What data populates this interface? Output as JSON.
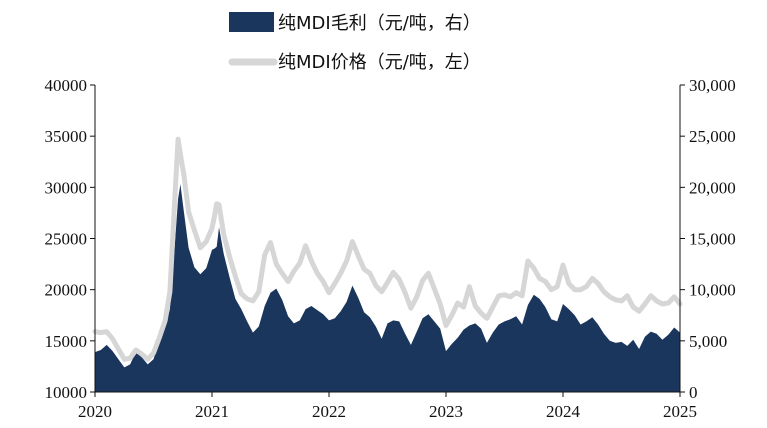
{
  "chart_data": {
    "type": "area+line",
    "x_ticks": [
      "2020",
      "2021",
      "2022",
      "2023",
      "2024",
      "2025"
    ],
    "y_left": {
      "ticks": [
        "10000",
        "15000",
        "20000",
        "25000",
        "30000",
        "35000",
        "40000"
      ],
      "range": [
        10000,
        40000
      ]
    },
    "y_right": {
      "ticks": [
        "0",
        "5,000",
        "10,000",
        "15,000",
        "20,000",
        "25,000",
        "30,000"
      ],
      "range": [
        0,
        30000
      ]
    },
    "grid": false,
    "legend_position": "top-center",
    "series": [
      {
        "name": "纯MDI毛利（元/吨，右）",
        "kind": "area",
        "axis": "right",
        "color": "#1b365d",
        "points": [
          [
            2020.0,
            3900
          ],
          [
            2020.05,
            4100
          ],
          [
            2020.1,
            4600
          ],
          [
            2020.15,
            4000
          ],
          [
            2020.2,
            3200
          ],
          [
            2020.25,
            2400
          ],
          [
            2020.3,
            2700
          ],
          [
            2020.35,
            3900
          ],
          [
            2020.4,
            3400
          ],
          [
            2020.45,
            2700
          ],
          [
            2020.5,
            3200
          ],
          [
            2020.55,
            5000
          ],
          [
            2020.6,
            6300
          ],
          [
            2020.64,
            8100
          ],
          [
            2020.68,
            14100
          ],
          [
            2020.71,
            18900
          ],
          [
            2020.73,
            20300
          ],
          [
            2020.76,
            17600
          ],
          [
            2020.8,
            14100
          ],
          [
            2020.85,
            12200
          ],
          [
            2020.9,
            11500
          ],
          [
            2020.95,
            12100
          ],
          [
            2021.0,
            13900
          ],
          [
            2021.02,
            14000
          ],
          [
            2021.04,
            14200
          ],
          [
            2021.06,
            16100
          ],
          [
            2021.1,
            13500
          ],
          [
            2021.15,
            11200
          ],
          [
            2021.2,
            9100
          ],
          [
            2021.25,
            8100
          ],
          [
            2021.3,
            6900
          ],
          [
            2021.35,
            5800
          ],
          [
            2021.4,
            6400
          ],
          [
            2021.45,
            8400
          ],
          [
            2021.5,
            9700
          ],
          [
            2021.55,
            10100
          ],
          [
            2021.6,
            9000
          ],
          [
            2021.65,
            7400
          ],
          [
            2021.7,
            6700
          ],
          [
            2021.75,
            7000
          ],
          [
            2021.8,
            8100
          ],
          [
            2021.85,
            8400
          ],
          [
            2021.9,
            8000
          ],
          [
            2021.95,
            7600
          ],
          [
            2022.0,
            7000
          ],
          [
            2022.05,
            7200
          ],
          [
            2022.1,
            7900
          ],
          [
            2022.15,
            8800
          ],
          [
            2022.2,
            10400
          ],
          [
            2022.25,
            9200
          ],
          [
            2022.3,
            7800
          ],
          [
            2022.35,
            7300
          ],
          [
            2022.4,
            6400
          ],
          [
            2022.45,
            5200
          ],
          [
            2022.5,
            6700
          ],
          [
            2022.55,
            7000
          ],
          [
            2022.6,
            6900
          ],
          [
            2022.65,
            5700
          ],
          [
            2022.7,
            4600
          ],
          [
            2022.75,
            5900
          ],
          [
            2022.8,
            7200
          ],
          [
            2022.85,
            7600
          ],
          [
            2022.9,
            6900
          ],
          [
            2022.95,
            6200
          ],
          [
            2023.0,
            4000
          ],
          [
            2023.05,
            4700
          ],
          [
            2023.1,
            5300
          ],
          [
            2023.15,
            6100
          ],
          [
            2023.2,
            6500
          ],
          [
            2023.25,
            6700
          ],
          [
            2023.3,
            6200
          ],
          [
            2023.35,
            4800
          ],
          [
            2023.4,
            5800
          ],
          [
            2023.45,
            6600
          ],
          [
            2023.5,
            6900
          ],
          [
            2023.55,
            7100
          ],
          [
            2023.6,
            7400
          ],
          [
            2023.65,
            6600
          ],
          [
            2023.7,
            8500
          ],
          [
            2023.75,
            9500
          ],
          [
            2023.8,
            9100
          ],
          [
            2023.85,
            8300
          ],
          [
            2023.9,
            7100
          ],
          [
            2023.95,
            6900
          ],
          [
            2024.0,
            8600
          ],
          [
            2024.05,
            8100
          ],
          [
            2024.1,
            7500
          ],
          [
            2024.15,
            6600
          ],
          [
            2024.2,
            6900
          ],
          [
            2024.25,
            7300
          ],
          [
            2024.3,
            6600
          ],
          [
            2024.35,
            5700
          ],
          [
            2024.4,
            5000
          ],
          [
            2024.45,
            4800
          ],
          [
            2024.5,
            4900
          ],
          [
            2024.55,
            4500
          ],
          [
            2024.6,
            5100
          ],
          [
            2024.65,
            4200
          ],
          [
            2024.7,
            5400
          ],
          [
            2024.75,
            5900
          ],
          [
            2024.8,
            5700
          ],
          [
            2024.85,
            5100
          ],
          [
            2024.9,
            5600
          ],
          [
            2024.95,
            6300
          ],
          [
            2025.0,
            5800
          ]
        ]
      },
      {
        "name": "纯MDI价格（元/吨，左）",
        "kind": "line",
        "axis": "left",
        "color": "#d6d6d6",
        "points": [
          [
            2020.0,
            15900
          ],
          [
            2020.05,
            15800
          ],
          [
            2020.1,
            15900
          ],
          [
            2020.15,
            15200
          ],
          [
            2020.2,
            14200
          ],
          [
            2020.25,
            13200
          ],
          [
            2020.3,
            13300
          ],
          [
            2020.35,
            14100
          ],
          [
            2020.4,
            13700
          ],
          [
            2020.45,
            13200
          ],
          [
            2020.5,
            13800
          ],
          [
            2020.55,
            15300
          ],
          [
            2020.6,
            17000
          ],
          [
            2020.64,
            19800
          ],
          [
            2020.68,
            28500
          ],
          [
            2020.71,
            34700
          ],
          [
            2020.73,
            33200
          ],
          [
            2020.76,
            31200
          ],
          [
            2020.8,
            27600
          ],
          [
            2020.85,
            25800
          ],
          [
            2020.9,
            24100
          ],
          [
            2020.95,
            24700
          ],
          [
            2021.0,
            26000
          ],
          [
            2021.02,
            27100
          ],
          [
            2021.04,
            28400
          ],
          [
            2021.06,
            28300
          ],
          [
            2021.1,
            25400
          ],
          [
            2021.15,
            23200
          ],
          [
            2021.2,
            21300
          ],
          [
            2021.25,
            19600
          ],
          [
            2021.3,
            19100
          ],
          [
            2021.35,
            18900
          ],
          [
            2021.4,
            19800
          ],
          [
            2021.45,
            23400
          ],
          [
            2021.5,
            24600
          ],
          [
            2021.55,
            22500
          ],
          [
            2021.6,
            21600
          ],
          [
            2021.65,
            20800
          ],
          [
            2021.7,
            21800
          ],
          [
            2021.75,
            22600
          ],
          [
            2021.8,
            24300
          ],
          [
            2021.85,
            22800
          ],
          [
            2021.9,
            21600
          ],
          [
            2021.95,
            20800
          ],
          [
            2022.0,
            19700
          ],
          [
            2022.05,
            20600
          ],
          [
            2022.1,
            21600
          ],
          [
            2022.15,
            22800
          ],
          [
            2022.2,
            24700
          ],
          [
            2022.25,
            23300
          ],
          [
            2022.3,
            22000
          ],
          [
            2022.35,
            21600
          ],
          [
            2022.4,
            20400
          ],
          [
            2022.45,
            19800
          ],
          [
            2022.5,
            20700
          ],
          [
            2022.55,
            21700
          ],
          [
            2022.6,
            21000
          ],
          [
            2022.65,
            19700
          ],
          [
            2022.7,
            18200
          ],
          [
            2022.75,
            19300
          ],
          [
            2022.8,
            20900
          ],
          [
            2022.85,
            21600
          ],
          [
            2022.9,
            20100
          ],
          [
            2022.95,
            18600
          ],
          [
            2023.0,
            16500
          ],
          [
            2023.05,
            17500
          ],
          [
            2023.1,
            18700
          ],
          [
            2023.15,
            18300
          ],
          [
            2023.2,
            20300
          ],
          [
            2023.25,
            18400
          ],
          [
            2023.3,
            17700
          ],
          [
            2023.35,
            17200
          ],
          [
            2023.4,
            18300
          ],
          [
            2023.45,
            19400
          ],
          [
            2023.5,
            19500
          ],
          [
            2023.55,
            19300
          ],
          [
            2023.6,
            19700
          ],
          [
            2023.65,
            19400
          ],
          [
            2023.7,
            22800
          ],
          [
            2023.75,
            22100
          ],
          [
            2023.8,
            21100
          ],
          [
            2023.85,
            20800
          ],
          [
            2023.9,
            20000
          ],
          [
            2023.95,
            20300
          ],
          [
            2024.0,
            22400
          ],
          [
            2024.05,
            20600
          ],
          [
            2024.1,
            20000
          ],
          [
            2024.15,
            20000
          ],
          [
            2024.2,
            20300
          ],
          [
            2024.25,
            21100
          ],
          [
            2024.3,
            20600
          ],
          [
            2024.35,
            19800
          ],
          [
            2024.4,
            19300
          ],
          [
            2024.45,
            19000
          ],
          [
            2024.5,
            18900
          ],
          [
            2024.55,
            19400
          ],
          [
            2024.6,
            18300
          ],
          [
            2024.65,
            17900
          ],
          [
            2024.7,
            18600
          ],
          [
            2024.75,
            19400
          ],
          [
            2024.8,
            18900
          ],
          [
            2024.85,
            18600
          ],
          [
            2024.9,
            18700
          ],
          [
            2024.95,
            19300
          ],
          [
            2025.0,
            18600
          ]
        ]
      }
    ]
  }
}
